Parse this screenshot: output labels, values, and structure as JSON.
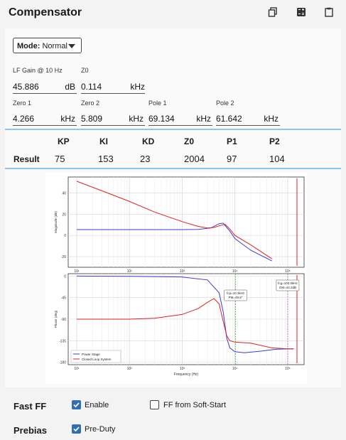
{
  "header": {
    "title": "Compensator"
  },
  "mode": {
    "label": "Mode:",
    "value": "Normal"
  },
  "fields_row1": [
    {
      "label": "LF Gain @ 10 Hz",
      "value": "45.886",
      "unit": "dB"
    },
    {
      "label": "Z0",
      "value": "0.114",
      "unit": "kHz"
    }
  ],
  "fields_row2": [
    {
      "label": "Zero 1",
      "value": "4.266",
      "unit": "kHz"
    },
    {
      "label": "Zero 2",
      "value": "5.809",
      "unit": "kHz"
    },
    {
      "label": "Pole 1",
      "value": "69.134",
      "unit": "kHz"
    },
    {
      "label": "Pole 2",
      "value": "61.642",
      "unit": "kHz"
    }
  ],
  "result": {
    "label": "Result",
    "headers": [
      "KP",
      "KI",
      "KD",
      "Z0",
      "P1",
      "P2"
    ],
    "values": [
      "75",
      "153",
      "23",
      "2004",
      "97",
      "104"
    ]
  },
  "chart_data": [
    {
      "type": "line",
      "xscale": "log",
      "xlim": [
        10,
        100000
      ],
      "ylim": [
        -30,
        55
      ],
      "ylabel": "Magnitude (dB)",
      "xticks": [
        "10¹",
        "10²",
        "10³",
        "10⁴",
        "10⁵"
      ],
      "yticks": [
        "40",
        "20",
        "0",
        "-20"
      ],
      "vline": 150000,
      "series": [
        {
          "color": "#3b3bd9",
          "x": [
            10,
            100,
            1000,
            2000,
            3500,
            5000,
            6000,
            8000,
            10000,
            20000,
            50000
          ],
          "y": [
            5.5,
            5.5,
            5.5,
            5.7,
            7,
            11,
            11.5,
            4,
            -3,
            -14,
            -24
          ]
        },
        {
          "color": "#e02020",
          "x": [
            10,
            30,
            100,
            300,
            1000,
            2000,
            3000,
            4000,
            5000,
            6500,
            8000,
            10000,
            20000,
            50000
          ],
          "y": [
            51,
            42,
            32,
            22,
            13,
            8.5,
            7,
            7.5,
            9,
            10.5,
            6,
            0,
            -9,
            -22
          ]
        }
      ]
    },
    {
      "type": "line",
      "xscale": "log",
      "xlim": [
        10,
        100000
      ],
      "ylim": [
        -185,
        5
      ],
      "ylabel": "Phase (deg)",
      "xlabel": "Frequency (Hz)",
      "xticks": [
        "10¹",
        "10²",
        "10³",
        "10⁴",
        "10⁵"
      ],
      "yticks": [
        "0",
        "-45",
        "-90",
        "-135",
        "-180"
      ],
      "annotations": [
        {
          "text": [
            "fcp=10.3kHz",
            "PM=49.8°"
          ],
          "x": 10300
        },
        {
          "text": [
            "fcg=100.0kHz",
            "GM=44.2dB"
          ],
          "x": 100000
        }
      ],
      "vline": 150000,
      "legend": [
        "Power Stage",
        "Closed Loop System"
      ],
      "series": [
        {
          "name": "Power Stage",
          "color": "#3b3bd9",
          "x": [
            10,
            100,
            1000,
            3000,
            5000,
            6000,
            7000,
            8000,
            10000,
            15000,
            30000,
            60000,
            100000,
            130000
          ],
          "y": [
            0,
            -0.5,
            -2,
            -8,
            -35,
            -75,
            -130,
            -150,
            -158,
            -160,
            -157,
            -153,
            -152,
            -152
          ]
        },
        {
          "name": "Closed Loop System",
          "color": "#e02020",
          "x": [
            10,
            100,
            300,
            1000,
            2000,
            3000,
            4000,
            5000,
            6000,
            7000,
            8000,
            10000,
            20000,
            50000,
            100000,
            130000
          ],
          "y": [
            -90,
            -90,
            -88,
            -80,
            -68,
            -55,
            -47,
            -58,
            -95,
            -125,
            -135,
            -138,
            -140,
            -150,
            -152,
            -152
          ]
        }
      ]
    }
  ],
  "fast_ff": {
    "label": "Fast FF",
    "opt1": "Enable",
    "opt2": "FF from Soft-Start"
  },
  "prebias": {
    "label": "Prebias",
    "opt1": "Pre-Duty"
  }
}
